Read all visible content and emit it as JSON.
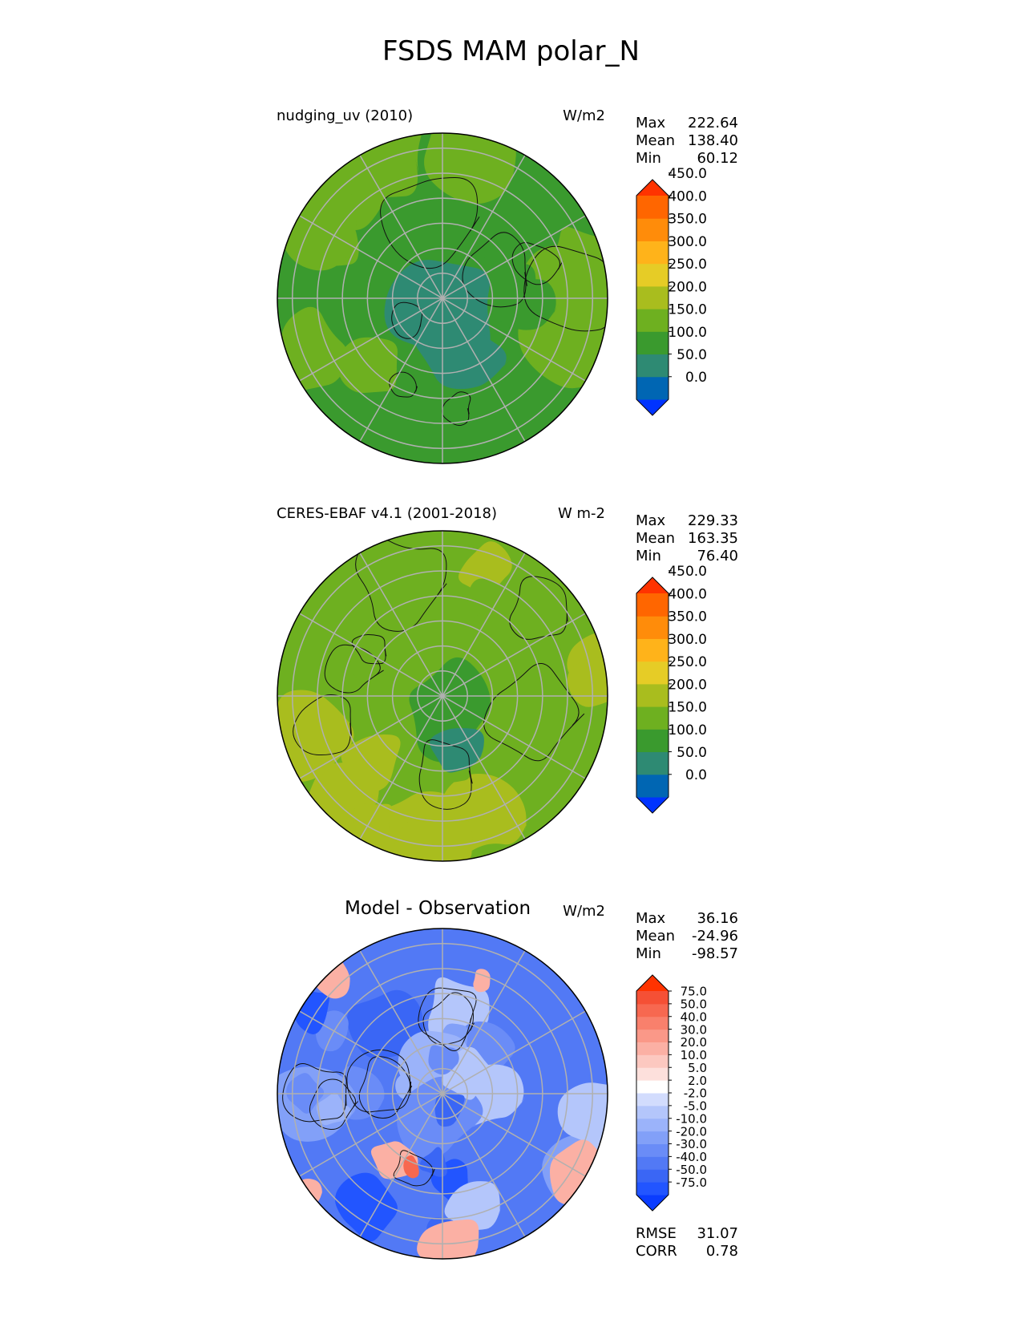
{
  "figure_title": "FSDS MAM polar_N",
  "panels": [
    {
      "title": "nudging_uv (2010)",
      "units": "W/m2",
      "stats": {
        "max_label": "Max",
        "max": "222.64",
        "mean_label": "Mean",
        "mean": "138.40",
        "min_label": "Min",
        "min": "60.12"
      },
      "colorbar": {
        "colors": [
          "#0033ff",
          "#0066b3",
          "#2e8a73",
          "#3a9a2e",
          "#6eb020",
          "#a9bd1e",
          "#e6cc26",
          "#ffb31a",
          "#ff8c0a",
          "#ff6600",
          "#ff3300"
        ],
        "labels": [
          "0.0",
          "50.0",
          "100.0",
          "150.0",
          "200.0",
          "250.0",
          "300.0",
          "350.0",
          "400.0",
          "450.0"
        ]
      }
    },
    {
      "title": "CERES-EBAF v4.1 (2001-2018)",
      "units": "W m-2",
      "stats": {
        "max_label": "Max",
        "max": "229.33",
        "mean_label": "Mean",
        "mean": "163.35",
        "min_label": "Min",
        "min": "76.40"
      },
      "colorbar": {
        "colors": [
          "#0033ff",
          "#0066b3",
          "#2e8a73",
          "#3a9a2e",
          "#6eb020",
          "#a9bd1e",
          "#e6cc26",
          "#ffb31a",
          "#ff8c0a",
          "#ff6600",
          "#ff3300"
        ],
        "labels": [
          "0.0",
          "50.0",
          "100.0",
          "150.0",
          "200.0",
          "250.0",
          "300.0",
          "350.0",
          "400.0",
          "450.0"
        ]
      }
    },
    {
      "title": "Model - Observation",
      "units": "W/m2",
      "stats": {
        "max_label": "Max",
        "max": "36.16",
        "mean_label": "Mean",
        "mean": "-24.96",
        "min_label": "Min",
        "min": "-98.57",
        "rmse_label": "RMSE",
        "rmse": "31.07",
        "corr_label": "CORR",
        "corr": "0.78"
      },
      "colorbar": {
        "colors": [
          "#0a3cff",
          "#2255ff",
          "#3a66f5",
          "#5279f5",
          "#6a8cf7",
          "#82a0f8",
          "#9bb3fa",
          "#b4c6fb",
          "#d2dcfd",
          "#ffffff",
          "#fde0dc",
          "#fcc8c0",
          "#fbb0a4",
          "#fa9888",
          "#f9806c",
          "#f76850",
          "#f55035",
          "#ff3300"
        ],
        "labels": [
          "-75.0",
          "-50.0",
          "-40.0",
          "-30.0",
          "-20.0",
          "-10.0",
          "-5.0",
          "-2.0",
          "2.0",
          "5.0",
          "10.0",
          "20.0",
          "30.0",
          "40.0",
          "50.0",
          "75.0"
        ]
      }
    }
  ]
}
